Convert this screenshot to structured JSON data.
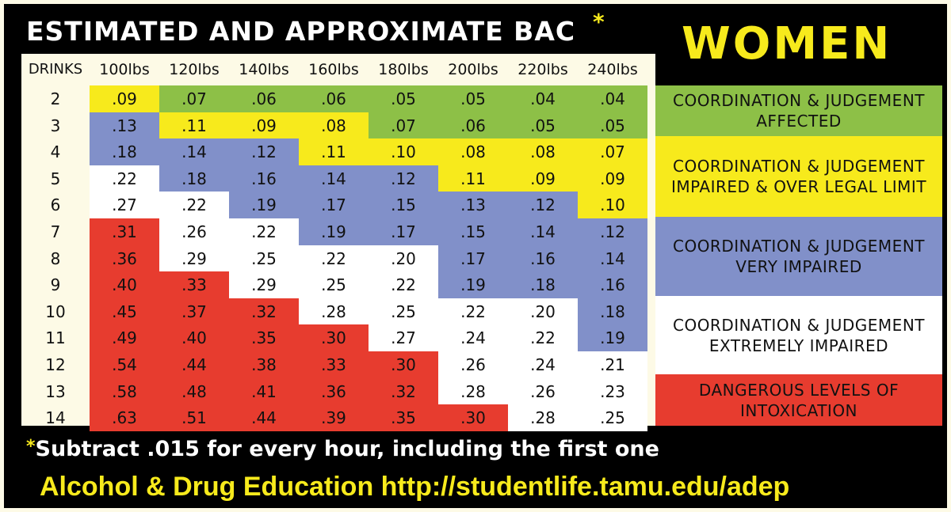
{
  "title": "ESTIMATED AND APPROXIMATE BAC",
  "title_marker": "*",
  "gender": "WOMEN",
  "colors": {
    "green": "#8dc047",
    "yellow": "#f7ea1c",
    "blue": "#8190c9",
    "white": "#ffffff",
    "red": "#e73c2f",
    "background": "#000000"
  },
  "table": {
    "drinks_header": "DRINKS",
    "weights": [
      "100lbs",
      "120lbs",
      "140lbs",
      "160lbs",
      "180lbs",
      "200lbs",
      "220lbs",
      "240lbs"
    ],
    "rows": [
      {
        "drinks": "2",
        "values": [
          ".09",
          ".07",
          ".06",
          ".06",
          ".05",
          ".05",
          ".04",
          ".04"
        ],
        "levels": [
          "y",
          "g",
          "g",
          "g",
          "g",
          "g",
          "g",
          "g"
        ]
      },
      {
        "drinks": "3",
        "values": [
          ".13",
          ".11",
          ".09",
          ".08",
          ".07",
          ".06",
          ".05",
          ".05"
        ],
        "levels": [
          "b",
          "y",
          "y",
          "y",
          "g",
          "g",
          "g",
          "g"
        ]
      },
      {
        "drinks": "4",
        "values": [
          ".18",
          ".14",
          ".12",
          ".11",
          ".10",
          ".08",
          ".08",
          ".07"
        ],
        "levels": [
          "b",
          "b",
          "b",
          "y",
          "y",
          "y",
          "y",
          "y"
        ]
      },
      {
        "drinks": "5",
        "values": [
          ".22",
          ".18",
          ".16",
          ".14",
          ".12",
          ".11",
          ".09",
          ".09"
        ],
        "levels": [
          "w",
          "b",
          "b",
          "b",
          "b",
          "y",
          "y",
          "y"
        ]
      },
      {
        "drinks": "6",
        "values": [
          ".27",
          ".22",
          ".19",
          ".17",
          ".15",
          ".13",
          ".12",
          ".10"
        ],
        "levels": [
          "w",
          "w",
          "b",
          "b",
          "b",
          "b",
          "b",
          "y"
        ]
      },
      {
        "drinks": "7",
        "values": [
          ".31",
          ".26",
          ".22",
          ".19",
          ".17",
          ".15",
          ".14",
          ".12"
        ],
        "levels": [
          "r",
          "w",
          "w",
          "b",
          "b",
          "b",
          "b",
          "b"
        ]
      },
      {
        "drinks": "8",
        "values": [
          ".36",
          ".29",
          ".25",
          ".22",
          ".20",
          ".17",
          ".16",
          ".14"
        ],
        "levels": [
          "r",
          "w",
          "w",
          "w",
          "w",
          "b",
          "b",
          "b"
        ]
      },
      {
        "drinks": "9",
        "values": [
          ".40",
          ".33",
          ".29",
          ".25",
          ".22",
          ".19",
          ".18",
          ".16"
        ],
        "levels": [
          "r",
          "r",
          "w",
          "w",
          "w",
          "b",
          "b",
          "b"
        ]
      },
      {
        "drinks": "10",
        "values": [
          ".45",
          ".37",
          ".32",
          ".28",
          ".25",
          ".22",
          ".20",
          ".18"
        ],
        "levels": [
          "r",
          "r",
          "r",
          "w",
          "w",
          "w",
          "w",
          "b"
        ]
      },
      {
        "drinks": "11",
        "values": [
          ".49",
          ".40",
          ".35",
          ".30",
          ".27",
          ".24",
          ".22",
          ".19"
        ],
        "levels": [
          "r",
          "r",
          "r",
          "r",
          "w",
          "w",
          "w",
          "b"
        ]
      },
      {
        "drinks": "12",
        "values": [
          ".54",
          ".44",
          ".38",
          ".33",
          ".30",
          ".26",
          ".24",
          ".21"
        ],
        "levels": [
          "r",
          "r",
          "r",
          "r",
          "r",
          "w",
          "w",
          "w"
        ]
      },
      {
        "drinks": "13",
        "values": [
          ".58",
          ".48",
          ".41",
          ".36",
          ".32",
          ".28",
          ".26",
          ".23"
        ],
        "levels": [
          "r",
          "r",
          "r",
          "r",
          "r",
          "w",
          "w",
          "w"
        ]
      },
      {
        "drinks": "14",
        "values": [
          ".63",
          ".51",
          ".44",
          ".39",
          ".35",
          ".30",
          ".28",
          ".25"
        ],
        "levels": [
          "r",
          "r",
          "r",
          "r",
          "r",
          "r",
          "w",
          "w"
        ]
      }
    ]
  },
  "legend": {
    "green": "COORDINATION & JUDGEMENT AFFECTED",
    "yellow": "COORDINATION & JUDGEMENT IMPAIRED & OVER LEGAL LIMIT",
    "blue": "COORDINATION & JUDGEMENT VERY IMPAIRED",
    "white": "COORDINATION & JUDGEMENT EXTREMELY IMPAIRED",
    "red": "DANGEROUS LEVELS OF INTOXICATION"
  },
  "footnote": {
    "marker": "*",
    "text": "Subtract .015 for every hour, including the first one"
  },
  "credit": "Alcohol & Drug Education http://studentlife.tamu.edu/adep"
}
